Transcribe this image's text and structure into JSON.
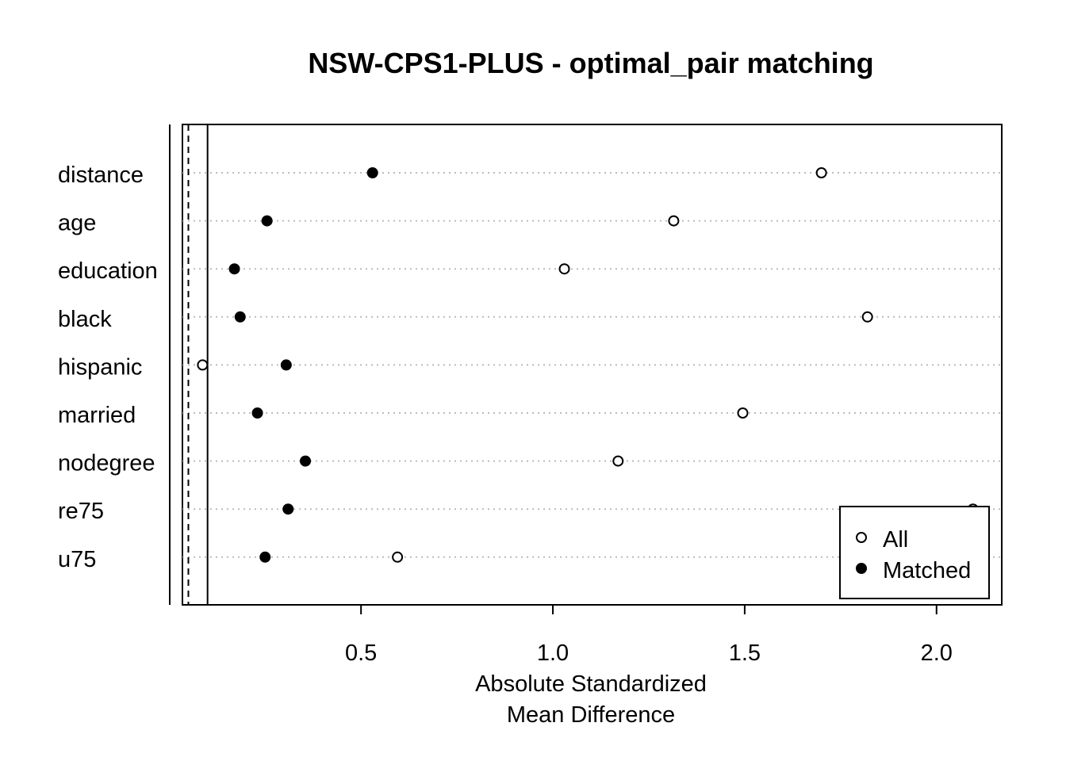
{
  "chart_data": {
    "type": "scatter",
    "title": "NSW-CPS1-PLUS - optimal_pair matching",
    "xlabel_line1": "Absolute Standardized",
    "xlabel_line2": "Mean Difference",
    "ylabel": "",
    "categories": [
      "distance",
      "age",
      "education",
      "black",
      "hispanic",
      "married",
      "nodegree",
      "re75",
      "u75"
    ],
    "series": [
      {
        "name": "All",
        "marker": "open-circle",
        "values": [
          1.7,
          1.315,
          1.03,
          1.82,
          0.087,
          1.495,
          1.17,
          2.095,
          0.595
        ]
      },
      {
        "name": "Matched",
        "marker": "filled-circle",
        "values": [
          0.53,
          0.255,
          0.17,
          0.185,
          0.305,
          0.23,
          0.355,
          0.31,
          0.25
        ]
      }
    ],
    "xticks": [
      0.5,
      1.0,
      1.5,
      2.0
    ],
    "xtick_labels": [
      "0.5",
      "1.0",
      "1.5",
      "2.0"
    ],
    "xlim": [
      0.0345,
      2.17
    ],
    "reference_lines": [
      {
        "value": 0.05,
        "style": "dashed"
      },
      {
        "value": 0.1,
        "style": "solid"
      }
    ],
    "grid": "dotted horizontal",
    "legend_position": "bottom-right"
  }
}
